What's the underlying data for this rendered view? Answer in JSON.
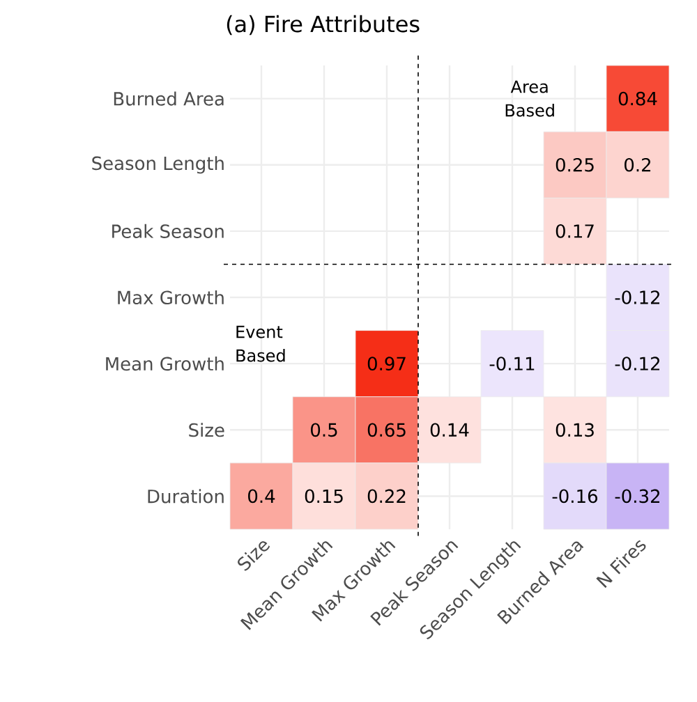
{
  "chart_data": {
    "type": "heatmap",
    "title": "(a) Fire Attributes",
    "categories": [
      "Size",
      "Mean Growth",
      "Max Growth",
      "Peak Season",
      "Season Length",
      "Burned Area",
      "N Fires"
    ],
    "y_categories": [
      "Burned Area",
      "Season Length",
      "Peak Season",
      "Max Growth",
      "Mean Growth",
      "Size",
      "Duration"
    ],
    "cells": [
      [
        null,
        null,
        null,
        null,
        null,
        null,
        0.84
      ],
      [
        null,
        null,
        null,
        null,
        null,
        0.25,
        0.2
      ],
      [
        null,
        null,
        null,
        null,
        null,
        0.17,
        null
      ],
      [
        null,
        null,
        null,
        null,
        null,
        null,
        -0.12
      ],
      [
        null,
        null,
        0.97,
        null,
        -0.11,
        null,
        -0.12
      ],
      [
        null,
        0.5,
        0.65,
        0.14,
        null,
        0.13,
        null
      ],
      [
        0.4,
        0.15,
        0.22,
        null,
        null,
        -0.16,
        -0.32
      ]
    ],
    "data_labels": true,
    "grid": true,
    "annotations": [
      "Area Based",
      "Event Based"
    ]
  }
}
